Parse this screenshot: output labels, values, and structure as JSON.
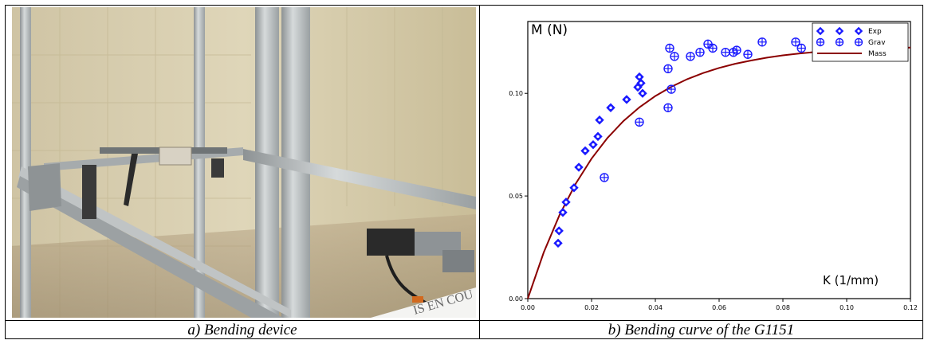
{
  "captions": {
    "a": "a) Bending device",
    "b": "b) Bending curve of the G1151"
  },
  "photo": {
    "banner_text": "IS EN COU",
    "colors": {
      "wall": "#d9cfae",
      "rail": "#b8bcbe",
      "motor": "#2a2a2a"
    }
  },
  "chart_data": {
    "type": "scatter",
    "xlabel": "K (1/mm)",
    "ylabel": "M (N)",
    "xlim": [
      0,
      0.12
    ],
    "ylim": [
      0,
      0.135
    ],
    "xticks": [
      0.0,
      0.02,
      0.04,
      0.06,
      0.08,
      0.1,
      0.12
    ],
    "xtick_labels": [
      "0.00",
      "0.02",
      "0.04",
      "0.06",
      "0.08",
      "0.10",
      "0.12"
    ],
    "yticks": [
      0.0,
      0.05,
      0.1
    ],
    "ytick_labels": [
      "0.00",
      "0.05",
      "0.10"
    ],
    "legend_position": "top-right",
    "series": [
      {
        "name": "Exp",
        "marker": "diamond",
        "color": "#1a1aff",
        "points": [
          [
            0.0095,
            0.027
          ],
          [
            0.0098,
            0.033
          ],
          [
            0.011,
            0.042
          ],
          [
            0.012,
            0.047
          ],
          [
            0.0145,
            0.054
          ],
          [
            0.016,
            0.064
          ],
          [
            0.018,
            0.072
          ],
          [
            0.0205,
            0.075
          ],
          [
            0.022,
            0.079
          ],
          [
            0.0225,
            0.087
          ],
          [
            0.026,
            0.093
          ],
          [
            0.031,
            0.097
          ],
          [
            0.0345,
            0.103
          ],
          [
            0.035,
            0.108
          ],
          [
            0.0355,
            0.105
          ],
          [
            0.036,
            0.1
          ]
        ]
      },
      {
        "name": "Grav",
        "marker": "circle-cross",
        "color": "#1a1aff",
        "points": [
          [
            0.024,
            0.059
          ],
          [
            0.035,
            0.086
          ],
          [
            0.044,
            0.093
          ],
          [
            0.045,
            0.102
          ],
          [
            0.044,
            0.112
          ],
          [
            0.0445,
            0.122
          ],
          [
            0.046,
            0.118
          ],
          [
            0.051,
            0.118
          ],
          [
            0.054,
            0.12
          ],
          [
            0.0565,
            0.124
          ],
          [
            0.058,
            0.122
          ],
          [
            0.062,
            0.12
          ],
          [
            0.0645,
            0.12
          ],
          [
            0.0655,
            0.121
          ],
          [
            0.069,
            0.119
          ],
          [
            0.0735,
            0.125
          ],
          [
            0.084,
            0.125
          ],
          [
            0.0858,
            0.122
          ]
        ]
      },
      {
        "name": "Mass",
        "type": "line",
        "color": "#8b0000",
        "points": [
          [
            0.0,
            0.0
          ],
          [
            0.005,
            0.0225
          ],
          [
            0.01,
            0.0409
          ],
          [
            0.015,
            0.0559
          ],
          [
            0.02,
            0.0682
          ],
          [
            0.025,
            0.0783
          ],
          [
            0.03,
            0.0865
          ],
          [
            0.035,
            0.0932
          ],
          [
            0.04,
            0.0987
          ],
          [
            0.045,
            0.1032
          ],
          [
            0.05,
            0.1069
          ],
          [
            0.055,
            0.1099
          ],
          [
            0.06,
            0.1124
          ],
          [
            0.065,
            0.1144
          ],
          [
            0.07,
            0.116
          ],
          [
            0.075,
            0.1174
          ],
          [
            0.08,
            0.1185
          ],
          [
            0.085,
            0.1194
          ],
          [
            0.09,
            0.1201
          ],
          [
            0.095,
            0.1207
          ],
          [
            0.1,
            0.1212
          ],
          [
            0.11,
            0.1219
          ],
          [
            0.12,
            0.1223
          ]
        ]
      }
    ]
  }
}
